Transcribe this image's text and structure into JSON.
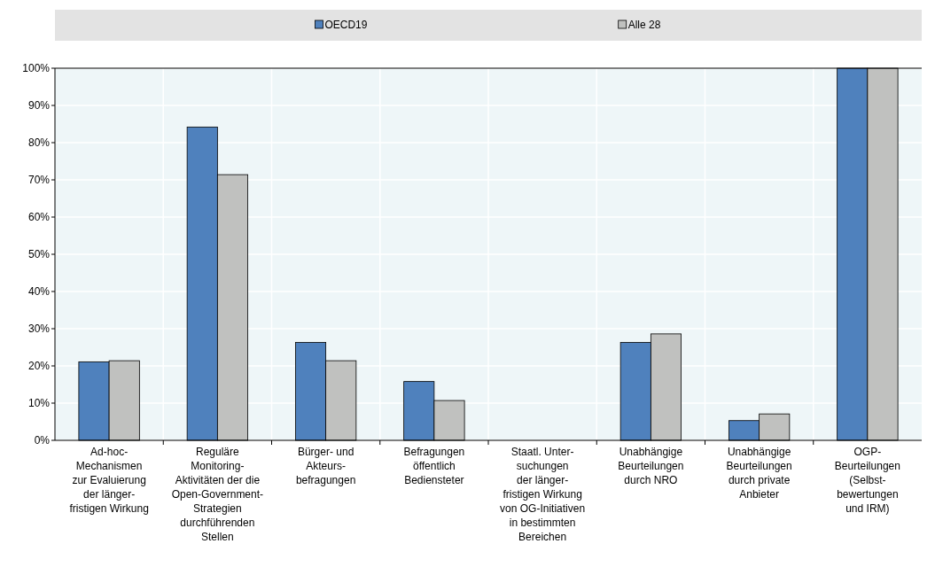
{
  "chart_data": {
    "type": "bar",
    "categories": [
      "Ad-hoc-\nMechanismen\nzur Evaluierung\nder länger-\nfristigen Wirkung",
      "Reguläre\nMonitoring-\nAktivitäten der die\nOpen-Government-\nStrategien\ndurchführenden\nStellen",
      "Bürger- und\nAkteurs-\nbefragungen",
      "Befragungen\nöffentlich\nBediensteter",
      "Staatl. Unter-\nsuchungen\nder länger-\nfristigen Wirkung\nvon OG-Initiativen\nin bestimmten\nBereichen",
      "Unabhängige\nBeurteilungen\ndurch NRO",
      "Unabhängige\nBeurteilungen\ndurch private\nAnbieter",
      "OGP-\nBeurteilungen\n(Selbst-\nbewertungen\nund IRM)"
    ],
    "series": [
      {
        "name": "OECD19",
        "color": "#4f81bd",
        "values": [
          21.1,
          84.2,
          26.3,
          15.8,
          0,
          26.3,
          5.3,
          100
        ]
      },
      {
        "name": "Alle 28",
        "color": "#c0c1bf",
        "values": [
          21.4,
          71.4,
          21.4,
          10.7,
          0,
          28.6,
          7.1,
          100
        ]
      }
    ],
    "ylim": [
      0,
      100
    ],
    "yticks": [
      {
        "value": 0,
        "label": "0%"
      },
      {
        "value": 10,
        "label": "10%"
      },
      {
        "value": 20,
        "label": "20%"
      },
      {
        "value": 30,
        "label": "30%"
      },
      {
        "value": 40,
        "label": "40%"
      },
      {
        "value": 50,
        "label": "50%"
      },
      {
        "value": 60,
        "label": "60%"
      },
      {
        "value": 70,
        "label": "70%"
      },
      {
        "value": 80,
        "label": "80%"
      },
      {
        "value": 90,
        "label": "90%"
      },
      {
        "value": 100,
        "label": "100%"
      }
    ],
    "grid": true,
    "legend": "top"
  }
}
